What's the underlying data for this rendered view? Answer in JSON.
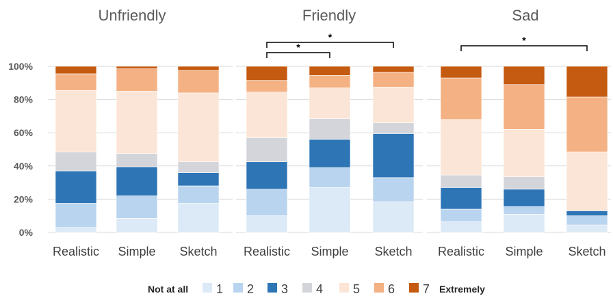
{
  "legend": {
    "low_label": "Not at all",
    "high_label": "Extremely",
    "levels": [
      {
        "label": "1",
        "color": "#dce9f6"
      },
      {
        "label": "2",
        "color": "#b9d4ee"
      },
      {
        "label": "3",
        "color": "#2e75b6"
      },
      {
        "label": "4",
        "color": "#d4d5da"
      },
      {
        "label": "5",
        "color": "#fbe5d6"
      },
      {
        "label": "6",
        "color": "#f4b183"
      },
      {
        "label": "7",
        "color": "#c55a11"
      }
    ]
  },
  "chart_data": [
    {
      "type": "bar",
      "stacked": true,
      "percent": true,
      "title": "Unfriendly",
      "yticks": [
        "0%",
        "20%",
        "40%",
        "60%",
        "80%",
        "100%"
      ],
      "categories": [
        "Realistic",
        "Simple",
        "Sketch"
      ],
      "series": [
        {
          "name": "1",
          "values": [
            3,
            8.5,
            17.5
          ]
        },
        {
          "name": "2",
          "values": [
            14.5,
            13.5,
            10.5
          ]
        },
        {
          "name": "3",
          "values": [
            19.5,
            17.5,
            8
          ]
        },
        {
          "name": "4",
          "values": [
            11.5,
            8,
            6.5
          ]
        },
        {
          "name": "5",
          "values": [
            37,
            37.5,
            41.5
          ]
        },
        {
          "name": "6",
          "values": [
            10,
            13.5,
            13.5
          ]
        },
        {
          "name": "7",
          "values": [
            4.5,
            1.5,
            2.5
          ]
        }
      ],
      "significance": []
    },
    {
      "type": "bar",
      "stacked": true,
      "percent": true,
      "title": "Friendly",
      "categories": [
        "Realistic",
        "Simple",
        "Sketch"
      ],
      "series": [
        {
          "name": "1",
          "values": [
            10,
            27,
            18.5
          ]
        },
        {
          "name": "2",
          "values": [
            16,
            12,
            14.5
          ]
        },
        {
          "name": "3",
          "values": [
            16.5,
            17,
            26.5
          ]
        },
        {
          "name": "4",
          "values": [
            14.5,
            12.5,
            6.5
          ]
        },
        {
          "name": "5",
          "values": [
            27.5,
            18.5,
            21.5
          ]
        },
        {
          "name": "6",
          "values": [
            7,
            7.5,
            9
          ]
        },
        {
          "name": "7",
          "values": [
            8.5,
            5.5,
            3.5
          ]
        }
      ],
      "significance": [
        {
          "from": 0,
          "to": 1,
          "label": "*"
        },
        {
          "from": 0,
          "to": 2,
          "label": "*"
        }
      ]
    },
    {
      "type": "bar",
      "stacked": true,
      "percent": true,
      "title": "Sad",
      "categories": [
        "Realistic",
        "Simple",
        "Sketch"
      ],
      "series": [
        {
          "name": "1",
          "values": [
            6.5,
            11,
            4.5
          ]
        },
        {
          "name": "2",
          "values": [
            7.5,
            4.5,
            5.5
          ]
        },
        {
          "name": "3",
          "values": [
            13,
            10.5,
            3
          ]
        },
        {
          "name": "4",
          "values": [
            7.5,
            7.5,
            0
          ]
        },
        {
          "name": "5",
          "values": [
            33.5,
            28.5,
            35.5
          ]
        },
        {
          "name": "6",
          "values": [
            25,
            27,
            33
          ]
        },
        {
          "name": "7",
          "values": [
            7,
            11,
            18.5
          ]
        }
      ],
      "significance": [
        {
          "from": 0,
          "to": 2,
          "label": "*"
        }
      ]
    }
  ]
}
